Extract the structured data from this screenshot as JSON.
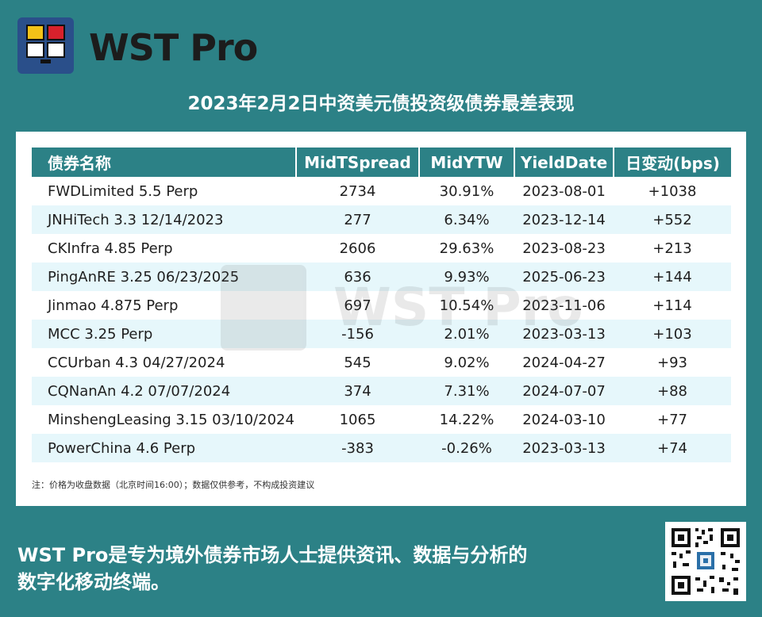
{
  "brand": {
    "name": "WST Pro"
  },
  "header": {
    "title": "2023年2月2日中资美元债投资级债券最差表现"
  },
  "table": {
    "columns": [
      "债券名称",
      "MidTSpread",
      "MidYTW",
      "YieldDate",
      "日变动(bps)"
    ],
    "rows": [
      [
        "FWDLimited 5.5 Perp",
        "2734",
        "30.91%",
        "2023-08-01",
        "+1038"
      ],
      [
        "JNHiTech 3.3 12/14/2023",
        "277",
        "6.34%",
        "2023-12-14",
        "+552"
      ],
      [
        "CKInfra 4.85 Perp",
        "2606",
        "29.63%",
        "2023-08-23",
        "+213"
      ],
      [
        "PingAnRE 3.25 06/23/2025",
        "636",
        "9.93%",
        "2025-06-23",
        "+144"
      ],
      [
        "Jinmao 4.875 Perp",
        "697",
        "10.54%",
        "2023-11-06",
        "+114"
      ],
      [
        "MCC 3.25 Perp",
        "-156",
        "2.01%",
        "2023-03-13",
        "+103"
      ],
      [
        "CCUrban 4.3 04/27/2024",
        "545",
        "9.02%",
        "2024-04-27",
        "+93"
      ],
      [
        "CQNanAn 4.2 07/07/2024",
        "374",
        "7.31%",
        "2024-07-07",
        "+88"
      ],
      [
        "MinshengLeasing 3.15 03/10/2024",
        "1065",
        "14.22%",
        "2024-03-10",
        "+77"
      ],
      [
        "PowerChina 4.6 Perp",
        "-383",
        "-0.26%",
        "2023-03-13",
        "+74"
      ]
    ]
  },
  "watermark": {
    "text": "WST Pro"
  },
  "note": "注：价格为收盘数据（北京时间16:00）；数据仅供参考，不构成投资建议",
  "footer": {
    "line1": "WST Pro是专为境外债券市场人士提供资讯、数据与分析的",
    "line2": "数字化移动终端。"
  },
  "colors": {
    "background": "#2c8186",
    "header_row": "#2c8186",
    "alt_row": "#e6f7fb",
    "logo_blue": "#2a4f8a",
    "logo_yellow": "#f2c218",
    "logo_red": "#d8212c"
  }
}
